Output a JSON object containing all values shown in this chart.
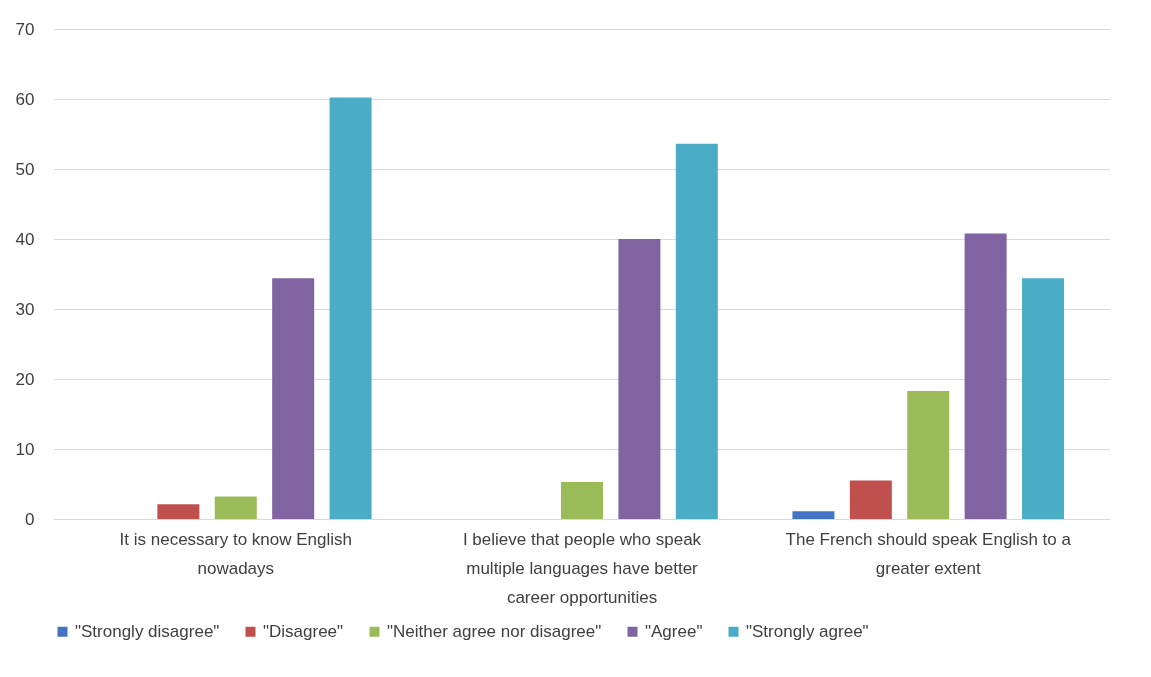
{
  "chart_data": {
    "type": "bar",
    "categories": [
      "It is necessary to know English nowadays",
      "I believe that people who speak multiple languages have better career opportunities",
      "The French should speak English to a greater extent"
    ],
    "series": [
      {
        "name": "\"Strongly disagree\"",
        "color": "#4472c4",
        "values": [
          0,
          0,
          1.1
        ]
      },
      {
        "name": "\"Disagree\"",
        "color": "#c0504d",
        "values": [
          2.1,
          0,
          5.5
        ]
      },
      {
        "name": "\"Neither agree nor disagree\"",
        "color": "#9bbb59",
        "values": [
          3.2,
          5.3,
          18.3
        ]
      },
      {
        "name": "\"Agree\"",
        "color": "#8064a2",
        "values": [
          34.4,
          40.0,
          40.8
        ]
      },
      {
        "name": "\"Strongly agree\"",
        "color": "#4bacc6",
        "values": [
          60.2,
          53.6,
          34.4
        ]
      }
    ],
    "ylim": [
      0,
      70
    ],
    "yticks": [
      0,
      10,
      20,
      30,
      40,
      50,
      60,
      70
    ],
    "grid": "y",
    "legend": "bottom"
  }
}
